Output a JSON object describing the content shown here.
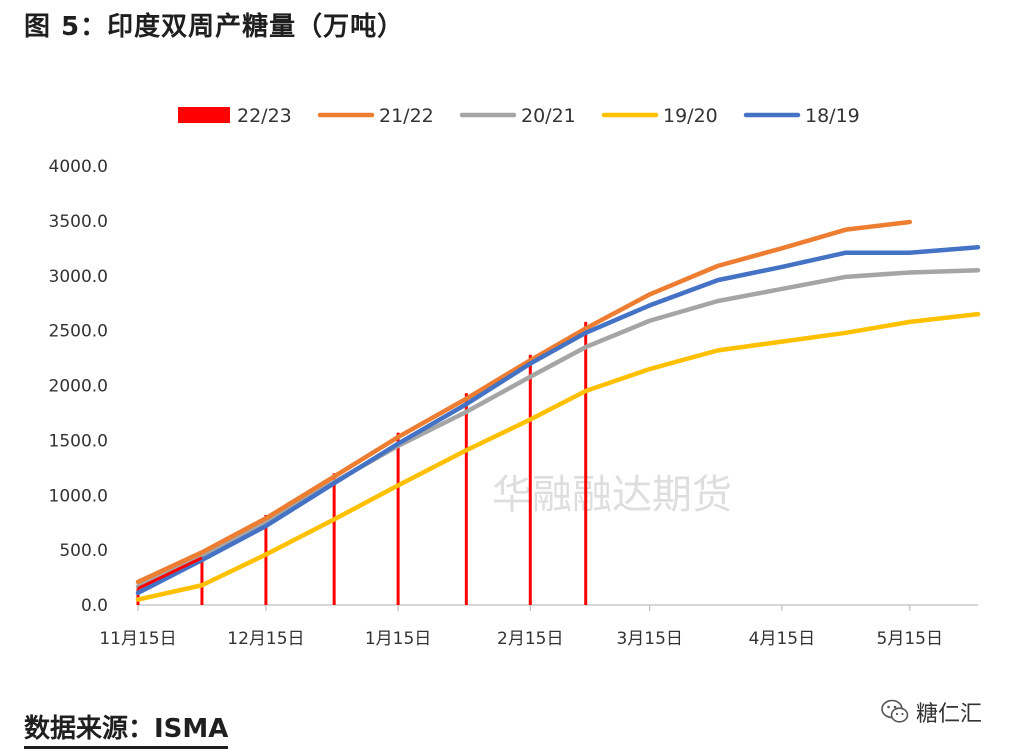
{
  "header": {
    "title": "图 5：印度双周产糖量（万吨）"
  },
  "footer": {
    "source": "数据来源：ISMA",
    "brand": "糖仁汇"
  },
  "watermark": "华融融达期货",
  "chart_data": {
    "type": "line",
    "title": "图 5：印度双周产糖量（万吨）",
    "xlabel": "",
    "ylabel": "",
    "ylim": [
      0,
      4000
    ],
    "yticks": [
      "0.0",
      "500.0",
      "1000.0",
      "1500.0",
      "2000.0",
      "2500.0",
      "3000.0",
      "3500.0",
      "4000.0"
    ],
    "xticks": [
      "11月15日",
      "12月15日",
      "1月15日",
      "2月15日",
      "3月15日",
      "4月15日",
      "5月15日"
    ],
    "xtick_day_offsets": [
      0,
      30,
      61,
      92,
      120,
      151,
      181
    ],
    "x_range_days": [
      0,
      197
    ],
    "legend_position": "top",
    "series": [
      {
        "name": "22/23",
        "type": "bar",
        "color": "#FF0000",
        "x_days": [
          0,
          15,
          30,
          46,
          61,
          77,
          92,
          105
        ],
        "values": [
          150,
          430,
          820,
          1200,
          1570,
          1930,
          2280,
          2580
        ]
      },
      {
        "name": "21/22",
        "type": "line",
        "color": "#ED7D31",
        "x_days": [
          0,
          15,
          30,
          46,
          61,
          77,
          92,
          105,
          120,
          136,
          151,
          166,
          181
        ],
        "values": [
          210,
          480,
          790,
          1170,
          1530,
          1880,
          2230,
          2520,
          2830,
          3090,
          3250,
          3420,
          3490
        ]
      },
      {
        "name": "20/21",
        "type": "line",
        "color": "#A5A5A5",
        "x_days": [
          0,
          15,
          30,
          46,
          61,
          77,
          92,
          105,
          120,
          136,
          151,
          166,
          181,
          197
        ],
        "values": [
          170,
          450,
          760,
          1120,
          1450,
          1760,
          2080,
          2350,
          2590,
          2770,
          2880,
          2990,
          3030,
          3050
        ]
      },
      {
        "name": "19/20",
        "type": "line",
        "color": "#FFC000",
        "x_days": [
          0,
          15,
          30,
          46,
          61,
          77,
          92,
          105,
          120,
          136,
          151,
          166,
          181,
          197
        ],
        "values": [
          50,
          180,
          460,
          780,
          1090,
          1410,
          1690,
          1950,
          2150,
          2320,
          2400,
          2480,
          2580,
          2650
        ]
      },
      {
        "name": "18/19",
        "type": "line",
        "color": "#4472C4",
        "x_days": [
          0,
          15,
          30,
          46,
          61,
          77,
          92,
          105,
          120,
          136,
          151,
          166,
          181,
          197
        ],
        "values": [
          110,
          410,
          720,
          1110,
          1470,
          1830,
          2200,
          2480,
          2730,
          2960,
          3080,
          3210,
          3210,
          3260
        ]
      }
    ]
  }
}
